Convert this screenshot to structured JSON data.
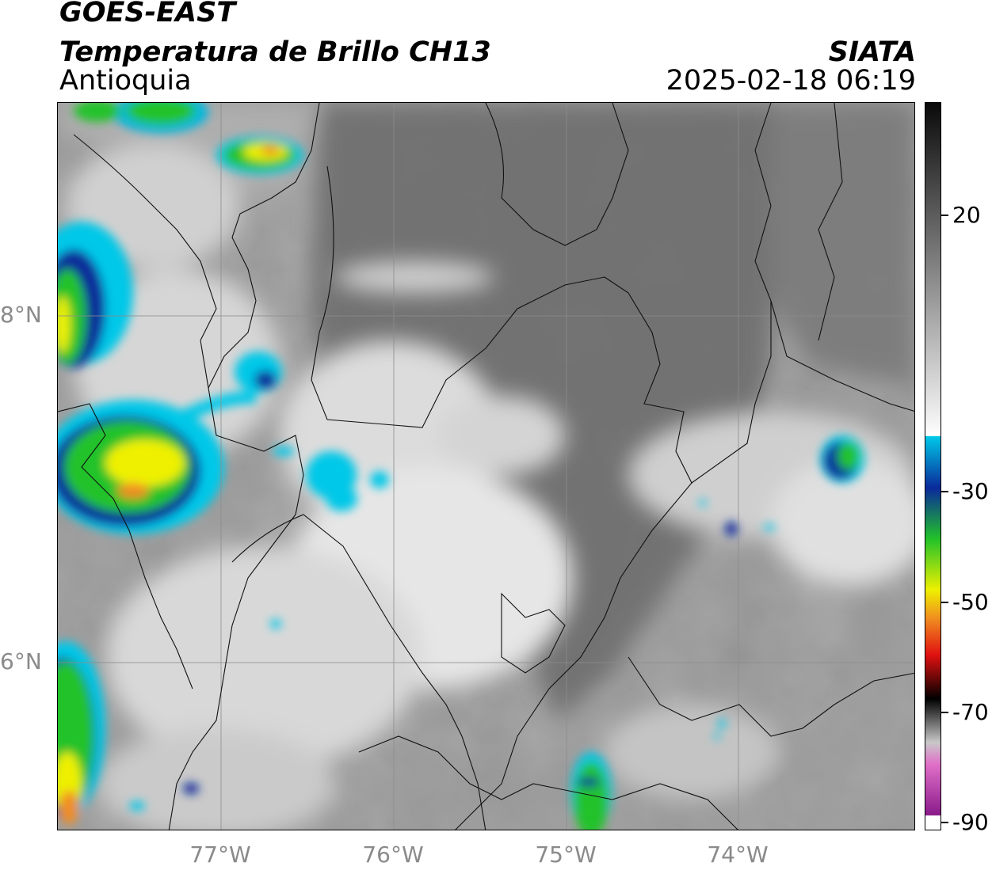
{
  "header": {
    "satellite": "GOES-EAST",
    "product": "Temperatura de Brillo CH13",
    "region": "Antioquia",
    "organization": "SIATA",
    "datetime": "2025-02-18 06:19"
  },
  "map": {
    "longitude_labels": [
      "77°W",
      "76°W",
      "75°W",
      "74°W"
    ],
    "latitude_labels": [
      "8°N",
      "6°N"
    ],
    "graticule": true
  },
  "colorbar": {
    "tick_labels": [
      "20",
      "-30",
      "-50",
      "-70",
      "-90"
    ],
    "colors": {
      "warm_high": "#0a0a0a",
      "gray_mid": "#8f8f8f",
      "cold_light": "#f4f4f4",
      "cyan": "#00c8e8",
      "blue": "#0a2a9a",
      "green": "#22c22a",
      "yellow": "#eef000",
      "orange": "#f08c20",
      "red": "#e01010",
      "black": "#000000",
      "pink": "#e070c8",
      "purple": "#8a1a8a"
    }
  }
}
